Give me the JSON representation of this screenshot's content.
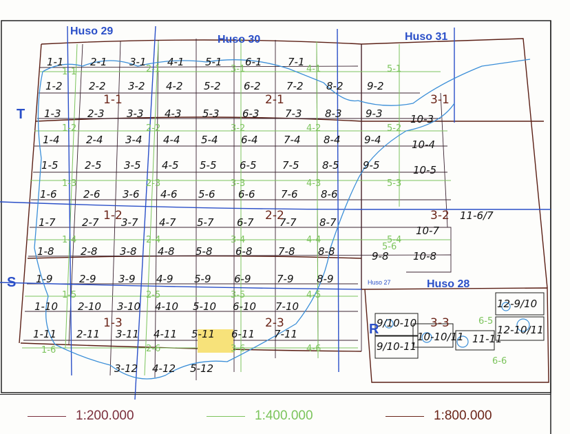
{
  "map": {
    "huso_labels": [
      "Huso 29",
      "Huso 30",
      "Huso 31",
      "Huso 28",
      "Huso 27"
    ],
    "zone_labels": [
      "T",
      "S",
      "R"
    ],
    "sheets_200": [
      "1-1",
      "2-1",
      "3-1",
      "4-1",
      "5-1",
      "6-1",
      "7-1",
      "1-2",
      "2-2",
      "3-2",
      "4-2",
      "5-2",
      "6-2",
      "7-2",
      "8-2",
      "9-2",
      "1-3",
      "2-3",
      "3-3",
      "4-3",
      "5-3",
      "6-3",
      "7-3",
      "8-3",
      "9-3",
      "10-3",
      "1-4",
      "2-4",
      "3-4",
      "4-4",
      "5-4",
      "6-4",
      "7-4",
      "8-4",
      "9-4",
      "10-4",
      "1-5",
      "2-5",
      "3-5",
      "4-5",
      "5-5",
      "6-5",
      "7-5",
      "8-5",
      "9-5",
      "10-5",
      "1-6",
      "2-6",
      "3-6",
      "4-6",
      "5-6",
      "6-6",
      "7-6",
      "8-6",
      "11-6/7",
      "1-7",
      "2-7",
      "3-7",
      "4-7",
      "5-7",
      "6-7",
      "7-7",
      "8-7",
      "10-7",
      "1-8",
      "2-8",
      "3-8",
      "4-8",
      "5-8",
      "6-8",
      "7-8",
      "8-8",
      "9-8",
      "10-8",
      "1-9",
      "2-9",
      "3-9",
      "4-9",
      "5-9",
      "6-9",
      "7-9",
      "8-9",
      "1-10",
      "2-10",
      "3-10",
      "4-10",
      "5-10",
      "6-10",
      "7-10",
      "1-11",
      "2-11",
      "3-11",
      "4-11",
      "5-11",
      "6-11",
      "7-11",
      "3-12",
      "4-12",
      "5-12",
      "9/10-10",
      "9/10-11",
      "10-10/11",
      "11-11",
      "12-9/10",
      "12-10/11"
    ],
    "sheets_400": [
      "1-1",
      "2-1",
      "3-1",
      "4-1",
      "5-1",
      "1-2",
      "2-2",
      "3-2",
      "4-2",
      "5-2",
      "1-3",
      "2-3",
      "3-3",
      "4-3",
      "5-3",
      "1-4",
      "2-4",
      "3-4",
      "4-4",
      "5-4",
      "1-5",
      "2-5",
      "3-5",
      "4-5",
      "1-6",
      "2-6",
      "3-6",
      "4-6",
      "5-6",
      "6-5",
      "6-6"
    ],
    "sheets_800": [
      "1-1",
      "2-1",
      "3-1",
      "1-2",
      "2-2",
      "3-2",
      "1-3",
      "2-3",
      "3-3"
    ],
    "highlighted_sheet": "5-11",
    "highlight_color": "#f7e27a"
  },
  "legend": {
    "items": [
      {
        "label": "1:200.000",
        "color": "#7a2e3c"
      },
      {
        "label": "1:400.000",
        "color": "#7cc45c"
      },
      {
        "label": "1:800.000",
        "color": "#6a2418"
      }
    ]
  },
  "colors": {
    "huso_lines": "#2a4fc8",
    "coast": "#3a8ed8",
    "grid_dark": "#5a1e14"
  }
}
